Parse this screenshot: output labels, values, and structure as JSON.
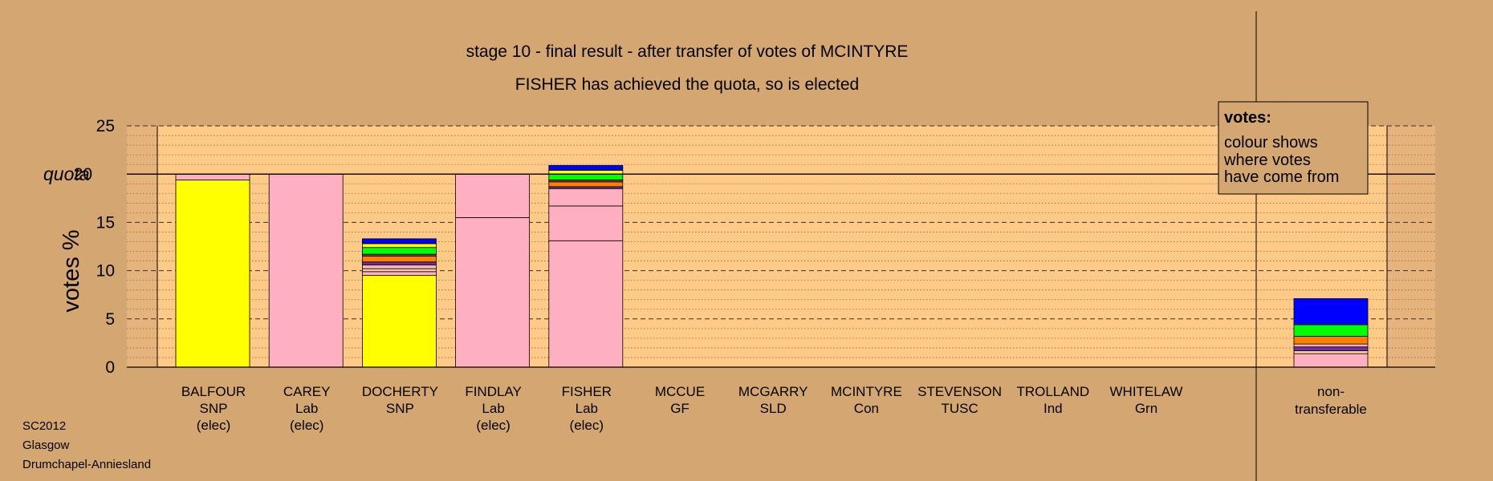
{
  "chart_data": {
    "type": "bar",
    "stacked": true,
    "title": "stage 10 - final result - after transfer of votes of MCINTYRE",
    "subtitle": "FISHER has achieved the quota, so is elected",
    "ylabel": "votes %",
    "ylim": [
      0,
      25
    ],
    "yticks": [
      0,
      5,
      10,
      15,
      20,
      25
    ],
    "quota": 20,
    "quota_label": "quota",
    "grid": true,
    "categories": [
      {
        "name": "BALFOUR",
        "party": "SNP",
        "status": "(elec)"
      },
      {
        "name": "CAREY",
        "party": "Lab",
        "status": "(elec)"
      },
      {
        "name": "DOCHERTY",
        "party": "SNP",
        "status": ""
      },
      {
        "name": "FINDLAY",
        "party": "Lab",
        "status": "(elec)"
      },
      {
        "name": "FISHER",
        "party": "Lab",
        "status": "(elec)"
      },
      {
        "name": "MCCUE",
        "party": "GF",
        "status": ""
      },
      {
        "name": "MCGARRY",
        "party": "SLD",
        "status": ""
      },
      {
        "name": "MCINTYRE",
        "party": "Con",
        "status": ""
      },
      {
        "name": "STEVENSON",
        "party": "TUSC",
        "status": ""
      },
      {
        "name": "TROLLAND",
        "party": "Ind",
        "status": ""
      },
      {
        "name": "WHITELAW",
        "party": "Grn",
        "status": ""
      }
    ],
    "nontransferable_label": [
      "non-",
      "transferable"
    ],
    "stacks": [
      [
        {
          "value": 19.4,
          "color": "#ffff00"
        },
        {
          "value": 0.6,
          "color": "#ffb0c0"
        }
      ],
      [
        {
          "value": 20.0,
          "color": "#ffb0c0"
        }
      ],
      [
        {
          "value": 9.5,
          "color": "#ffff00"
        },
        {
          "value": 0.4,
          "color": "#ffb0c0"
        },
        {
          "value": 0.3,
          "color": "#ffd0a0"
        },
        {
          "value": 0.4,
          "color": "#ffb0c0"
        },
        {
          "value": 0.3,
          "color": "#7030a0"
        },
        {
          "value": 0.6,
          "color": "#ff7f00"
        },
        {
          "value": 0.2,
          "color": "#8b4513"
        },
        {
          "value": 0.7,
          "color": "#00ff00"
        },
        {
          "value": 0.4,
          "color": "#ffff00"
        },
        {
          "value": 0.5,
          "color": "#0000ff"
        }
      ],
      [
        {
          "value": 15.5,
          "color": "#ffb0c0"
        },
        {
          "value": 4.5,
          "color": "#ffb0c0"
        }
      ],
      [
        {
          "value": 13.1,
          "color": "#ffb0c0"
        },
        {
          "value": 3.6,
          "color": "#ffb0c0"
        },
        {
          "value": 1.8,
          "color": "#ffb0c0"
        },
        {
          "value": 0.2,
          "color": "#7030a0"
        },
        {
          "value": 0.5,
          "color": "#ff7f00"
        },
        {
          "value": 0.2,
          "color": "#8b4513"
        },
        {
          "value": 0.6,
          "color": "#00ff00"
        },
        {
          "value": 0.4,
          "color": "#ffff00"
        },
        {
          "value": 0.5,
          "color": "#0000ff"
        }
      ],
      [],
      [],
      [],
      [],
      [],
      []
    ],
    "nontransferable_stack": [
      {
        "value": 1.4,
        "color": "#ffb0c0"
      },
      {
        "value": 0.3,
        "color": "#ffd0a0"
      },
      {
        "value": 0.4,
        "color": "#7030a0"
      },
      {
        "value": 0.3,
        "color": "#ffb0c0"
      },
      {
        "value": 0.8,
        "color": "#ff7f00"
      },
      {
        "value": 1.2,
        "color": "#00ff00"
      },
      {
        "value": 2.7,
        "color": "#0000ff"
      }
    ],
    "legend": {
      "title": "votes:",
      "lines": [
        "colour shows",
        "where votes",
        "have come from"
      ],
      "placement": "top-right"
    }
  },
  "footer": [
    "SC2012",
    "Glasgow",
    "Drumchapel-Anniesland"
  ],
  "colors": {
    "background": "#d4a772",
    "plot_background": "#ffc987",
    "legend_background": "#d4a772"
  }
}
